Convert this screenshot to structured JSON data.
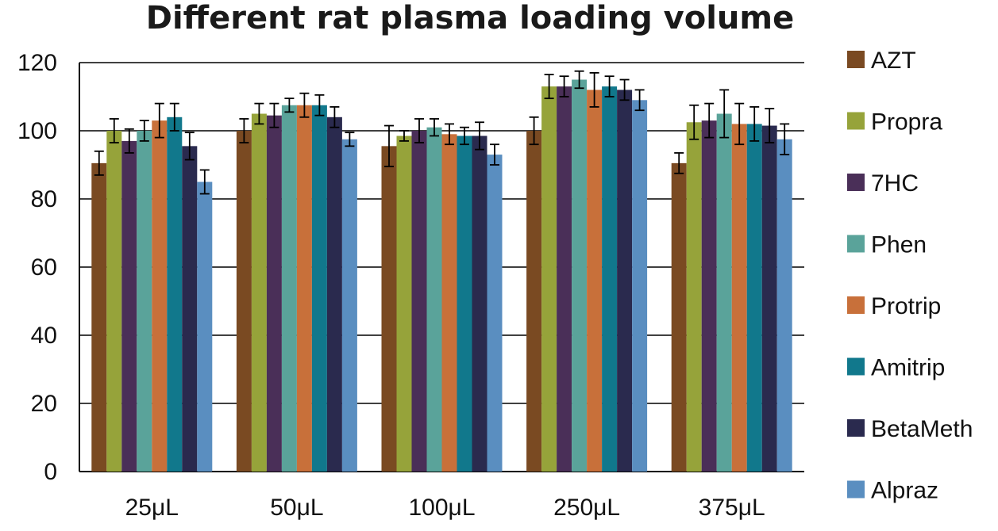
{
  "chart_data": {
    "type": "bar",
    "title": "Different rat plasma loading volume",
    "xlabel": "",
    "ylabel": "",
    "ylim": [
      0,
      120
    ],
    "yticks": [
      "0",
      "20",
      "40",
      "60",
      "80",
      "100",
      "120"
    ],
    "grid": true,
    "legend_position": "right",
    "categories": [
      "25μL",
      "50μL",
      "100μL",
      "250μL",
      "375μL"
    ],
    "series": [
      {
        "name": "AZT",
        "color": "#7a4a22",
        "values": [
          90.5,
          100,
          95.5,
          100,
          90.5
        ],
        "errors": [
          3.5,
          3.5,
          6,
          4,
          3
        ]
      },
      {
        "name": "Propra",
        "color": "#96a33a",
        "values": [
          100,
          105,
          98.5,
          113,
          102.5
        ],
        "errors": [
          3.5,
          3,
          1.5,
          3.5,
          5
        ]
      },
      {
        "name": "7HC",
        "color": "#4a2f58",
        "values": [
          97,
          104.5,
          100,
          113,
          103
        ],
        "errors": [
          3.5,
          3.5,
          3.5,
          3,
          5
        ]
      },
      {
        "name": "Phen",
        "color": "#5aa39a",
        "values": [
          100,
          107.5,
          101,
          115,
          105
        ],
        "errors": [
          3,
          2,
          2.5,
          2.5,
          7
        ]
      },
      {
        "name": "Protrip",
        "color": "#c8703a",
        "values": [
          103,
          107.5,
          99,
          112,
          102
        ],
        "errors": [
          5,
          3.5,
          3,
          5,
          6
        ]
      },
      {
        "name": "Amitrip",
        "color": "#11788c",
        "values": [
          104,
          107.5,
          98.5,
          113,
          102
        ],
        "errors": [
          4,
          3,
          2.5,
          3,
          5
        ]
      },
      {
        "name": "BetaMeth",
        "color": "#2a2a4e",
        "values": [
          95.5,
          104,
          98.5,
          112,
          101.5
        ],
        "errors": [
          4,
          3,
          4,
          3,
          5
        ]
      },
      {
        "name": "Alpraz",
        "color": "#5a8ec0",
        "values": [
          85,
          97.5,
          93,
          109,
          97.5
        ],
        "errors": [
          3.5,
          2,
          3,
          3,
          4.5
        ]
      }
    ]
  }
}
